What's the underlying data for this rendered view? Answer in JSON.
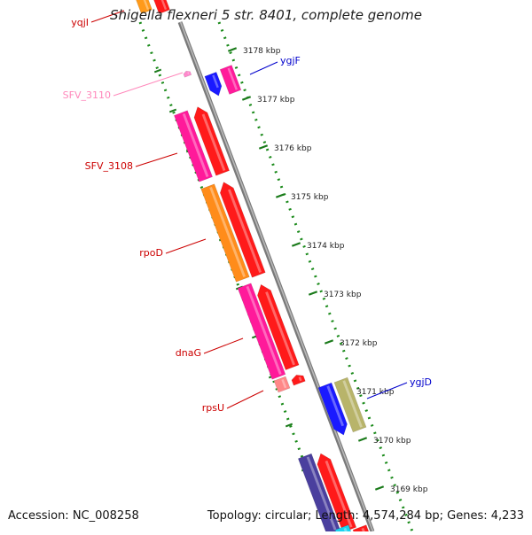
{
  "title": "Shigella flexneri 5 str. 8401, complete genome",
  "footer": {
    "accession": "Accession: NC_008258",
    "summary": "Topology: circular; Length: 4,574,284 bp; Genes: 4,233"
  },
  "ticks": [
    {
      "label": "3178 kbp"
    },
    {
      "label": "3177 kbp"
    },
    {
      "label": "3176 kbp"
    },
    {
      "label": "3175 kbp"
    },
    {
      "label": "3174 kbp"
    },
    {
      "label": "3173 kbp"
    },
    {
      "label": "3172 kbp"
    },
    {
      "label": "3171 kbp"
    },
    {
      "label": "3170 kbp"
    },
    {
      "label": "3169 kbp"
    }
  ],
  "gene_labels": [
    {
      "name": "yqjI",
      "color": "#cc0000"
    },
    {
      "name": "SFV_3110",
      "color": "#ff88bb"
    },
    {
      "name": "SFV_3108",
      "color": "#cc0000"
    },
    {
      "name": "rpoD",
      "color": "#cc0000"
    },
    {
      "name": "dnaG",
      "color": "#cc0000"
    },
    {
      "name": "rpsU",
      "color": "#cc0000"
    },
    {
      "name": "ygjF",
      "color": "#0000cc"
    },
    {
      "name": "ygjD",
      "color": "#0000cc"
    }
  ],
  "colors": {
    "backbone": "#888888",
    "tick_dash": "#1a7a1a",
    "dot_track": "#1a8a1a"
  }
}
